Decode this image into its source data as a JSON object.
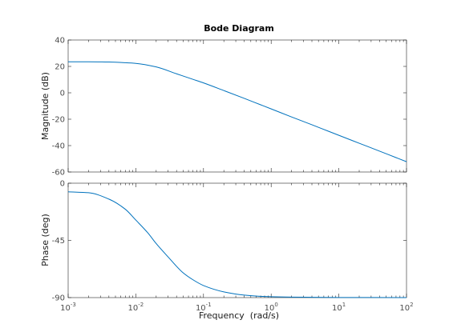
{
  "chart_data": {
    "type": "line",
    "title": "Bode Diagram",
    "xlabel": "Frequency  (rad/s)",
    "xscale": "log",
    "xlim": [
      0.001,
      100
    ],
    "x_ticks": [
      {
        "base": "10",
        "exp": "-3"
      },
      {
        "base": "10",
        "exp": "-2"
      },
      {
        "base": "10",
        "exp": "-1"
      },
      {
        "base": "10",
        "exp": "0"
      },
      {
        "base": "10",
        "exp": "1"
      },
      {
        "base": "10",
        "exp": "2"
      }
    ],
    "line_color": "#0072bd",
    "grid": false,
    "panels": [
      {
        "name": "magnitude",
        "ylabel": "Magnitude (dB)",
        "ylim": [
          -60,
          40
        ],
        "y_ticks": [
          "40",
          "20",
          "0",
          "-20",
          "-40",
          "-60"
        ],
        "y_tick_values": [
          40,
          20,
          0,
          -20,
          -40,
          -60
        ],
        "x": [
          0.001,
          0.002,
          0.004,
          0.007,
          0.01,
          0.02,
          0.04,
          0.07,
          0.1,
          0.2,
          0.4,
          0.7,
          1,
          2,
          4,
          7,
          10,
          20,
          40,
          70,
          100
        ],
        "y": [
          23.5,
          23.5,
          23.3,
          22.8,
          22.3,
          19.6,
          14.4,
          10.2,
          7.5,
          1.7,
          -4.2,
          -9.1,
          -12.2,
          -18.3,
          -24.2,
          -29.1,
          -32.2,
          -38.2,
          -44.2,
          -49.1,
          -52.2
        ]
      },
      {
        "name": "phase",
        "ylabel": "Phase (deg)",
        "ylim": [
          -90,
          0
        ],
        "y_ticks": [
          "0",
          "-45",
          "-90"
        ],
        "y_tick_values": [
          0,
          -45,
          -90
        ],
        "x": [
          0.001,
          0.002,
          0.004,
          0.007,
          0.01,
          0.015,
          0.02,
          0.03,
          0.05,
          0.07,
          0.1,
          0.2,
          0.4,
          1,
          2,
          10,
          100
        ],
        "y": [
          -6.8,
          -7.5,
          -12.5,
          -20.5,
          -29,
          -39,
          -47.5,
          -58,
          -70.5,
          -76,
          -80.5,
          -85.5,
          -88,
          -89.3,
          -89.6,
          -89.9,
          -90
        ]
      }
    ]
  }
}
